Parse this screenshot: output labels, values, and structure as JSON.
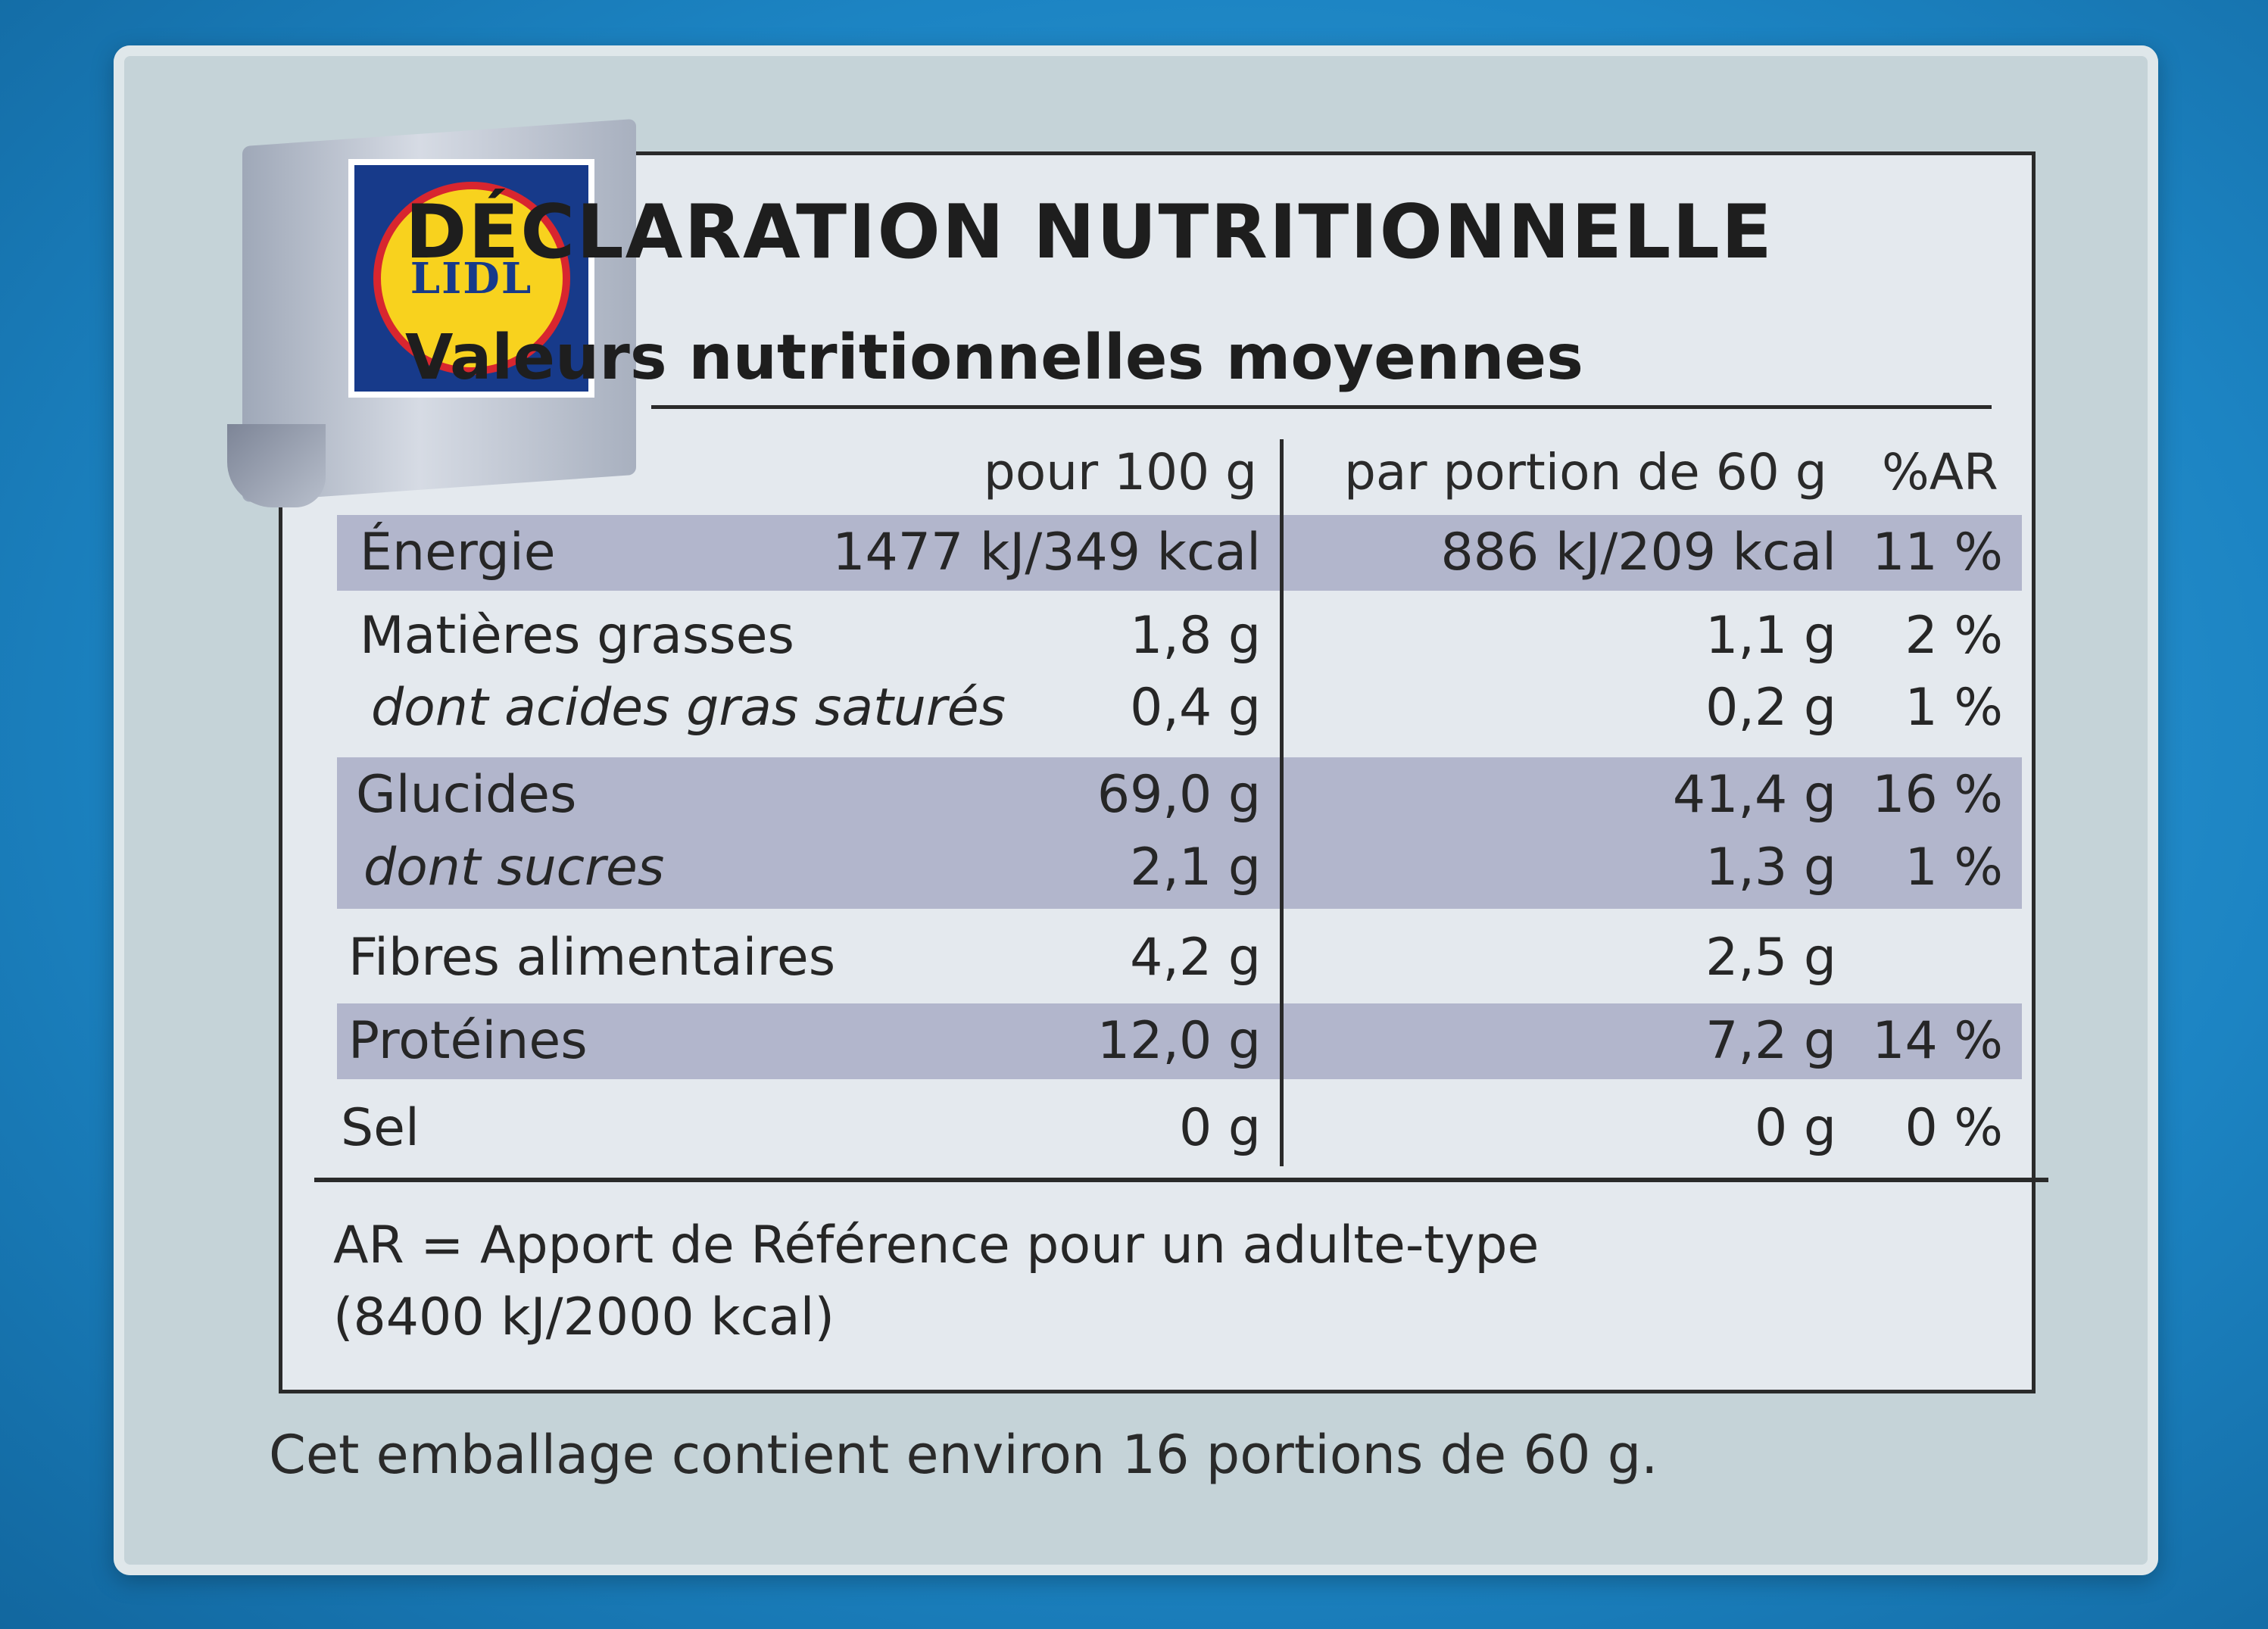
{
  "brand": {
    "logo_text": "LIDL",
    "colors": {
      "blue": "#173a8a",
      "yellow": "#f8d21e",
      "red": "#d8262f"
    }
  },
  "header": {
    "title": "DÉCLARATION NUTRITIONNELLE",
    "subtitle": "Valeurs nutritionnelles moyennes"
  },
  "columns": {
    "per_100g": "pour 100 g",
    "per_portion": "par portion de 60 g",
    "ar": "%AR"
  },
  "rows": [
    {
      "name": "Énergie",
      "per_100g": "1477 kJ/349 kcal",
      "per_portion": "886 kJ/209 kcal",
      "ar": "11 %"
    },
    {
      "name": "Matières grasses",
      "per_100g": "1,8 g",
      "per_portion": "1,1 g",
      "ar": "2 %"
    },
    {
      "name": "dont acides gras saturés",
      "per_100g": "0,4 g",
      "per_portion": "0,2 g",
      "ar": "1 %"
    },
    {
      "name": "Glucides",
      "per_100g": "69,0 g",
      "per_portion": "41,4 g",
      "ar": "16 %"
    },
    {
      "name": "dont sucres",
      "per_100g": "2,1 g",
      "per_portion": "1,3 g",
      "ar": "1 %"
    },
    {
      "name": "Fibres alimentaires",
      "per_100g": "4,2 g",
      "per_portion": "2,5 g",
      "ar": ""
    },
    {
      "name": "Protéines",
      "per_100g": "12,0 g",
      "per_portion": "7,2 g",
      "ar": "14 %"
    },
    {
      "name": "Sel",
      "per_100g": "0 g",
      "per_portion": "0 g",
      "ar": "0 %"
    }
  ],
  "footnote": {
    "line1": "AR = Apport de Référence pour un adulte-type",
    "line2": "(8400 kJ/2000 kcal)"
  },
  "portions_note": "Cet emballage contient environ 16 portions de 60 g."
}
